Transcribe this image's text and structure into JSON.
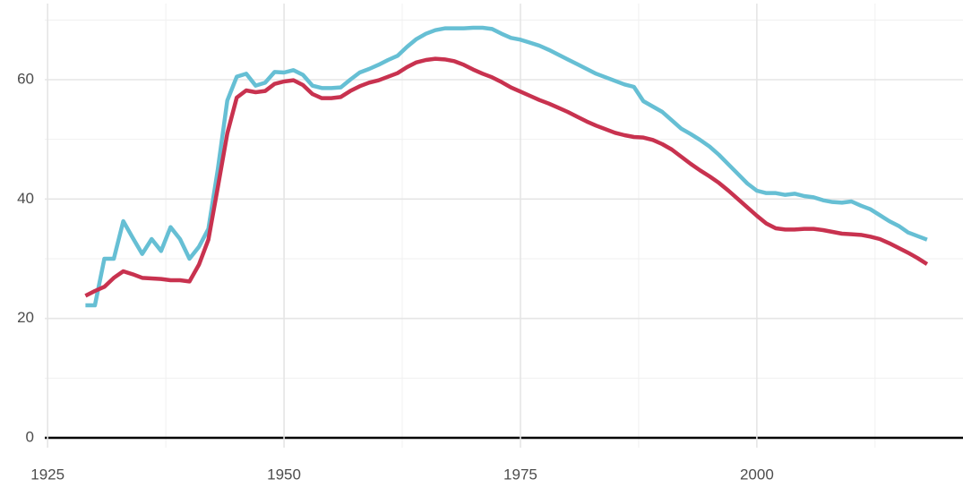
{
  "chart_data": {
    "type": "line",
    "x": [
      1929,
      1930,
      1931,
      1932,
      1933,
      1934,
      1935,
      1936,
      1937,
      1938,
      1939,
      1940,
      1941,
      1942,
      1943,
      1944,
      1945,
      1946,
      1947,
      1948,
      1949,
      1950,
      1951,
      1952,
      1953,
      1954,
      1955,
      1956,
      1957,
      1958,
      1959,
      1960,
      1961,
      1962,
      1963,
      1964,
      1965,
      1966,
      1967,
      1968,
      1969,
      1970,
      1971,
      1972,
      1973,
      1974,
      1975,
      1976,
      1977,
      1978,
      1979,
      1980,
      1981,
      1982,
      1983,
      1984,
      1985,
      1986,
      1987,
      1988,
      1989,
      1990,
      1991,
      1992,
      1993,
      1994,
      1995,
      1996,
      1997,
      1998,
      1999,
      2000,
      2001,
      2002,
      2003,
      2004,
      2005,
      2006,
      2007,
      2008,
      2009,
      2010,
      2011,
      2012,
      2013,
      2014,
      2015,
      2016,
      2017,
      2018
    ],
    "series": [
      {
        "color": "#66bfd4",
        "values": [
          22.2,
          22.2,
          30,
          30,
          36.3,
          33.5,
          30.8,
          33.3,
          31.3,
          35.3,
          33.3,
          30,
          32,
          35,
          45,
          56.5,
          60.5,
          61,
          59,
          59.5,
          61.3,
          61.2,
          61.6,
          60.8,
          59,
          58.6,
          58.6,
          58.7,
          60,
          61.2,
          61.8,
          62.5,
          63.3,
          64,
          65.5,
          66.8,
          67.7,
          68.3,
          68.6,
          68.6,
          68.6,
          68.7,
          68.7,
          68.5,
          67.7,
          67,
          66.7,
          66.2,
          65.7,
          65,
          64.2,
          63.4,
          62.6,
          61.8,
          61,
          60.4,
          59.8,
          59.2,
          58.8,
          56.4,
          55.5,
          54.6,
          53.2,
          51.8,
          50.9,
          49.9,
          48.8,
          47.4,
          45.8,
          44.2,
          42.6,
          41.4,
          41,
          41,
          40.7,
          40.9,
          40.5,
          40.3,
          39.8,
          39.5,
          39.4,
          39.6,
          38.9,
          38.3,
          37.3,
          36.3,
          35.5,
          34.4,
          33.8,
          33.2
        ]
      },
      {
        "color": "#c8324f",
        "values": [
          23.8,
          24.6,
          25.3,
          26.8,
          27.9,
          27.4,
          26.8,
          26.7,
          26.6,
          26.4,
          26.4,
          26.2,
          29,
          33.2,
          42,
          51,
          57,
          58.2,
          57.9,
          58.1,
          59.3,
          59.7,
          59.9,
          59.1,
          57.6,
          56.9,
          56.9,
          57.1,
          58.1,
          58.9,
          59.5,
          59.9,
          60.5,
          61.1,
          62.1,
          62.9,
          63.3,
          63.5,
          63.4,
          63.1,
          62.5,
          61.7,
          61,
          60.4,
          59.6,
          58.7,
          58,
          57.3,
          56.6,
          56,
          55.3,
          54.6,
          53.8,
          53,
          52.3,
          51.7,
          51.1,
          50.7,
          50.4,
          50.3,
          49.9,
          49.2,
          48.3,
          47.1,
          45.9,
          44.8,
          43.8,
          42.7,
          41.4,
          40,
          38.6,
          37.2,
          35.9,
          35.1,
          34.9,
          34.9,
          35,
          35,
          34.8,
          34.5,
          34.2,
          34.1,
          34,
          33.7,
          33.3,
          32.6,
          31.8,
          31,
          30.1,
          29.1
        ]
      }
    ],
    "xlim": [
      1924.7,
      2021.8
    ],
    "xticks": [
      1925,
      1950,
      1975,
      2000
    ],
    "ylim": [
      0,
      72
    ],
    "yticks": [
      0,
      20,
      40,
      60
    ],
    "grid": true
  }
}
